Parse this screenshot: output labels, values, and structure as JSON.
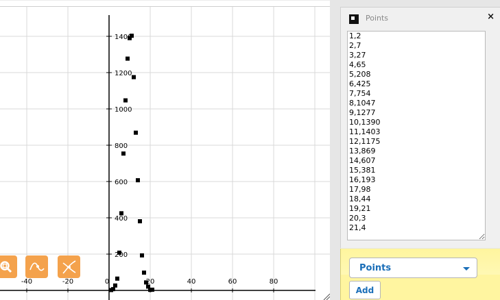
{
  "graph": {
    "x_tick_labels": [
      "-40",
      "-20",
      "0",
      "20",
      "40",
      "60",
      "80"
    ],
    "y_tick_labels": [
      "200",
      "400",
      "600",
      "800",
      "1000",
      "1200",
      "1400"
    ],
    "tools": [
      {
        "name": "zoom-fit-button",
        "icon": "magnifier-icon"
      },
      {
        "name": "curve-fit-button",
        "icon": "curve-icon"
      },
      {
        "name": "intersect-button",
        "icon": "cross-curve-icon"
      }
    ],
    "colors": {
      "tool_button": "#f4a24c",
      "grid": "#d9d9d9",
      "axis": "#000000",
      "point": "#000000"
    }
  },
  "chart_data": {
    "type": "scatter",
    "title": "",
    "xlabel": "",
    "ylabel": "",
    "xlim": [
      -52,
      100
    ],
    "ylim": [
      -40,
      1460
    ],
    "grid": true,
    "points": [
      [
        1,
        2
      ],
      [
        2,
        7
      ],
      [
        3,
        27
      ],
      [
        4,
        65
      ],
      [
        5,
        208
      ],
      [
        6,
        425
      ],
      [
        7,
        754
      ],
      [
        8,
        1047
      ],
      [
        9,
        1277
      ],
      [
        10,
        1390
      ],
      [
        11,
        1403
      ],
      [
        12,
        1175
      ],
      [
        13,
        869
      ],
      [
        14,
        607
      ],
      [
        15,
        381
      ],
      [
        16,
        193
      ],
      [
        17,
        98
      ],
      [
        18,
        44
      ],
      [
        19,
        21
      ],
      [
        20,
        3
      ],
      [
        21,
        4
      ]
    ]
  },
  "points_panel": {
    "title": "Points",
    "close_label": "×",
    "points_text": "1,2\n2,7\n3,27\n4,65\n5,208\n6,425\n7,754\n8,1047\n9,1277\n10,1390\n11,1403\n12,1175\n13,869\n14,607\n15,381\n16,193\n17,98\n18,44\n19,21\n20,3\n21,4"
  },
  "controls": {
    "select_value": "Points",
    "add_label": "Add",
    "accent": "#1a6eb8",
    "panel_bg": "#fff5a0"
  }
}
